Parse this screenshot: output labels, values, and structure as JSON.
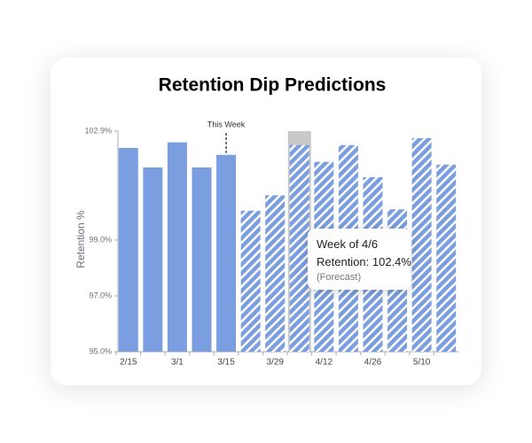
{
  "chart_data": {
    "type": "bar",
    "title": "Retention Dip Predictions",
    "y_label": "Retention %",
    "categories": [
      "2/15",
      null,
      "3/1",
      null,
      "3/15",
      null,
      "3/29",
      null,
      "4/12",
      null,
      "4/26",
      null,
      "5/10",
      null
    ],
    "values": [
      102.3,
      101.6,
      102.5,
      101.6,
      102.05,
      100.05,
      100.6,
      102.4,
      101.8,
      102.4,
      101.25,
      100.1,
      102.65,
      101.7
    ],
    "hatched": [
      false,
      false,
      false,
      false,
      false,
      true,
      true,
      true,
      true,
      true,
      true,
      true,
      true,
      true
    ],
    "color": "#7b9ee0",
    "ylim": [
      95,
      102.9
    ],
    "yticks": [
      {
        "value": 95,
        "label": "95.0%"
      },
      {
        "value": 97,
        "label": "97.0%"
      },
      {
        "value": 99,
        "label": "99.0%"
      },
      {
        "value": 102.9,
        "label": "102.9%"
      }
    ],
    "annotation": {
      "text": "This Week",
      "category": "3/15"
    },
    "tooltip": {
      "title": "Week of 4/6",
      "text": "Retention: 102.4%",
      "note": "(Forecast)"
    }
  }
}
